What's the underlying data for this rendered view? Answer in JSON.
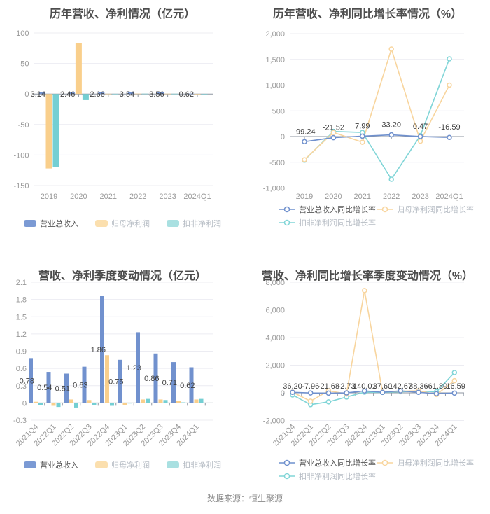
{
  "page": {
    "source_note": "数据来源：恒生聚源"
  },
  "colors": {
    "blue": "#7191ce",
    "yellow": "#f9cf8c",
    "teal": "#74cfd3",
    "line_blue": "#6f90cd",
    "line_yellow": "#f8d59e",
    "line_teal": "#80d5d7",
    "legend_blue": "#7b9ad4",
    "legend_yellow": "#fbdfae",
    "legend_teal": "#a9e0e1",
    "grid": "#ececf2",
    "axis": "#8d95a0",
    "axis_text": "#999999",
    "label_text": "#3f3f3f",
    "title_text": "#4d4d4d",
    "muted_text": "#b6bcc4",
    "active_legend_text": "#565656",
    "source_text": "#8a8a8a",
    "divider": "#ededf2",
    "background": "#ffffff"
  },
  "chart_data": [
    {
      "type": "bar",
      "title": "历年营收、净利情况（亿元）",
      "categories": [
        "2019",
        "2020",
        "2021",
        "2022",
        "2023",
        "2024Q1"
      ],
      "yticks": [
        100,
        50,
        0,
        -50,
        -100,
        -150
      ],
      "ytick_labels": [
        "100",
        "50",
        "0",
        "-50",
        "-100",
        "-150"
      ],
      "ylim": [
        -150,
        100
      ],
      "grid": true,
      "legend_position": "bottom",
      "series": [
        {
          "name": "营业总收入",
          "color": "#7191ce",
          "values": [
            3.14,
            2.46,
            2.66,
            3.54,
            3.56,
            0.62
          ],
          "labels": [
            "3.14",
            "2.46",
            "2.66",
            "3.54",
            "3.56",
            "0.62"
          ]
        },
        {
          "name": "归母净利润",
          "color": "#f9cf8c",
          "values": [
            -122,
            83,
            0.4,
            0.6,
            0.5,
            0.15
          ]
        },
        {
          "name": "扣非净利润",
          "color": "#74cfd3",
          "values": [
            -120,
            -10,
            0.3,
            0.5,
            0.4,
            0.1
          ]
        }
      ]
    },
    {
      "type": "line",
      "title": "历年营收、净利同比增长率情况（%）",
      "categories": [
        "2019",
        "2020",
        "2021",
        "2022",
        "2023",
        "2024Q1"
      ],
      "yticks": [
        2000,
        1500,
        1000,
        500,
        0,
        -500,
        -1000
      ],
      "ytick_labels": [
        "2,000",
        "1,500",
        "1,000",
        "500",
        "0",
        "-500",
        "-1,000"
      ],
      "ylim": [
        -1000,
        2000
      ],
      "grid": true,
      "legend_position": "bottom",
      "series": [
        {
          "name": "营业总收入同比增长率",
          "color": "#6f90cd",
          "values": [
            -99.24,
            -21.52,
            7.99,
            33.2,
            0.47,
            -16.59
          ],
          "labels": [
            "-99.24",
            "-21.52",
            "7.99",
            "33.20",
            "0.47",
            "-16.59"
          ]
        },
        {
          "name": "归母净利润同比增长率",
          "color": "#f8d59e",
          "values": [
            -450,
            80,
            -110,
            1700,
            -90,
            1000
          ]
        },
        {
          "name": "扣非净利润同比增长率",
          "color": "#80d5d7",
          "values": [
            -460,
            100,
            80,
            -830,
            20,
            1510
          ]
        }
      ]
    },
    {
      "type": "bar",
      "title": "营收、净利季度变动情况（亿元）",
      "categories": [
        "2021Q4",
        "2022Q1",
        "2022Q2",
        "2022Q3",
        "2022Q4",
        "2023Q1",
        "2023Q2",
        "2023Q3",
        "2023Q4",
        "2024Q1"
      ],
      "yticks": [
        2.1,
        1.8,
        1.5,
        1.2,
        0.9,
        0.6,
        0.3,
        0,
        -0.3
      ],
      "ytick_labels": [
        "2.1",
        "1.8",
        "1.5",
        "1.2",
        "0.9",
        "0.6",
        "0.3",
        "0",
        "-0.3"
      ],
      "ylim": [
        -0.3,
        2.1
      ],
      "grid": true,
      "legend_position": "bottom",
      "series": [
        {
          "name": "营业总收入",
          "color": "#7191ce",
          "values": [
            0.78,
            0.54,
            0.51,
            0.63,
            1.86,
            0.75,
            1.23,
            0.86,
            0.71,
            0.62
          ],
          "labels": [
            "0.78",
            "0.54",
            "0.51",
            "0.63",
            "1.86",
            "0.75",
            "1.23",
            "0.86",
            "0.71",
            "0.62"
          ]
        },
        {
          "name": "归母净利润",
          "color": "#f9cf8c",
          "values": [
            0.02,
            -0.05,
            0.06,
            0.05,
            0.83,
            -0.04,
            0.06,
            0.06,
            0.03,
            0.06
          ]
        },
        {
          "name": "扣非净利润",
          "color": "#74cfd3",
          "values": [
            -0.04,
            -0.07,
            -0.08,
            -0.04,
            -0.05,
            -0.01,
            0.07,
            0.05,
            0.01,
            0.07
          ]
        }
      ]
    },
    {
      "type": "line",
      "title": "营收、净利同比增长率季度变动情况（%）",
      "categories": [
        "2021Q4",
        "2022Q1",
        "2022Q2",
        "2022Q3",
        "2022Q4",
        "2023Q1",
        "2023Q2",
        "2023Q3",
        "2023Q4",
        "2024Q1"
      ],
      "yticks": [
        8000,
        6000,
        4000,
        2000,
        0,
        -2000
      ],
      "ytick_labels": [
        "8,000",
        "6,000",
        "4,000",
        "2,000",
        "0",
        "-2,000"
      ],
      "ylim": [
        -2000,
        8000
      ],
      "grid": true,
      "legend_position": "bottom",
      "series": [
        {
          "name": "营业总收入同比增长率",
          "color": "#6f90cd",
          "values": [
            36.2,
            -7.96,
            -21.68,
            -2.73,
            140.01,
            37.6,
            142.67,
            38.36,
            -61.8,
            -16.59
          ],
          "labels": [
            "36.20",
            "-7.96",
            "-21.68",
            "-2.73",
            "140.01",
            "37.60",
            "142.67",
            "38.36",
            "-61.80",
            "-16.59"
          ]
        },
        {
          "name": "归母净利润同比增长率",
          "color": "#f8d59e",
          "values": [
            50,
            -600,
            150,
            -80,
            7400,
            60,
            120,
            150,
            -120,
            880
          ]
        },
        {
          "name": "扣非净利润同比增长率",
          "color": "#80d5d7",
          "values": [
            -150,
            -850,
            -650,
            -300,
            50,
            30,
            80,
            120,
            80,
            1470
          ]
        }
      ]
    }
  ]
}
